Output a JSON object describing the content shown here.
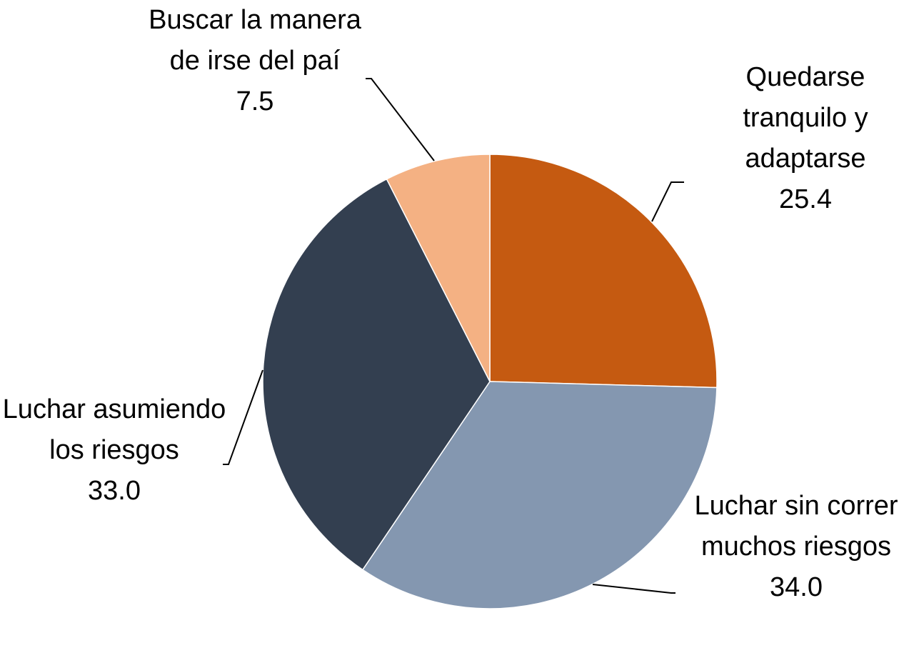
{
  "chart_data": {
    "type": "pie",
    "categories": [
      "Quedarse tranquilo y adaptarse",
      "Luchar sin correr muchos riesgos",
      "Luchar asumiendo los riesgos",
      "Buscar la manera de irse del paí"
    ],
    "values": [
      25.4,
      34.0,
      33.0,
      7.5
    ],
    "value_labels": [
      "25.4",
      "34.0",
      "33.0",
      "7.5"
    ],
    "colors": [
      "#c55a11",
      "#8497b0",
      "#333f50",
      "#f4b183"
    ]
  }
}
